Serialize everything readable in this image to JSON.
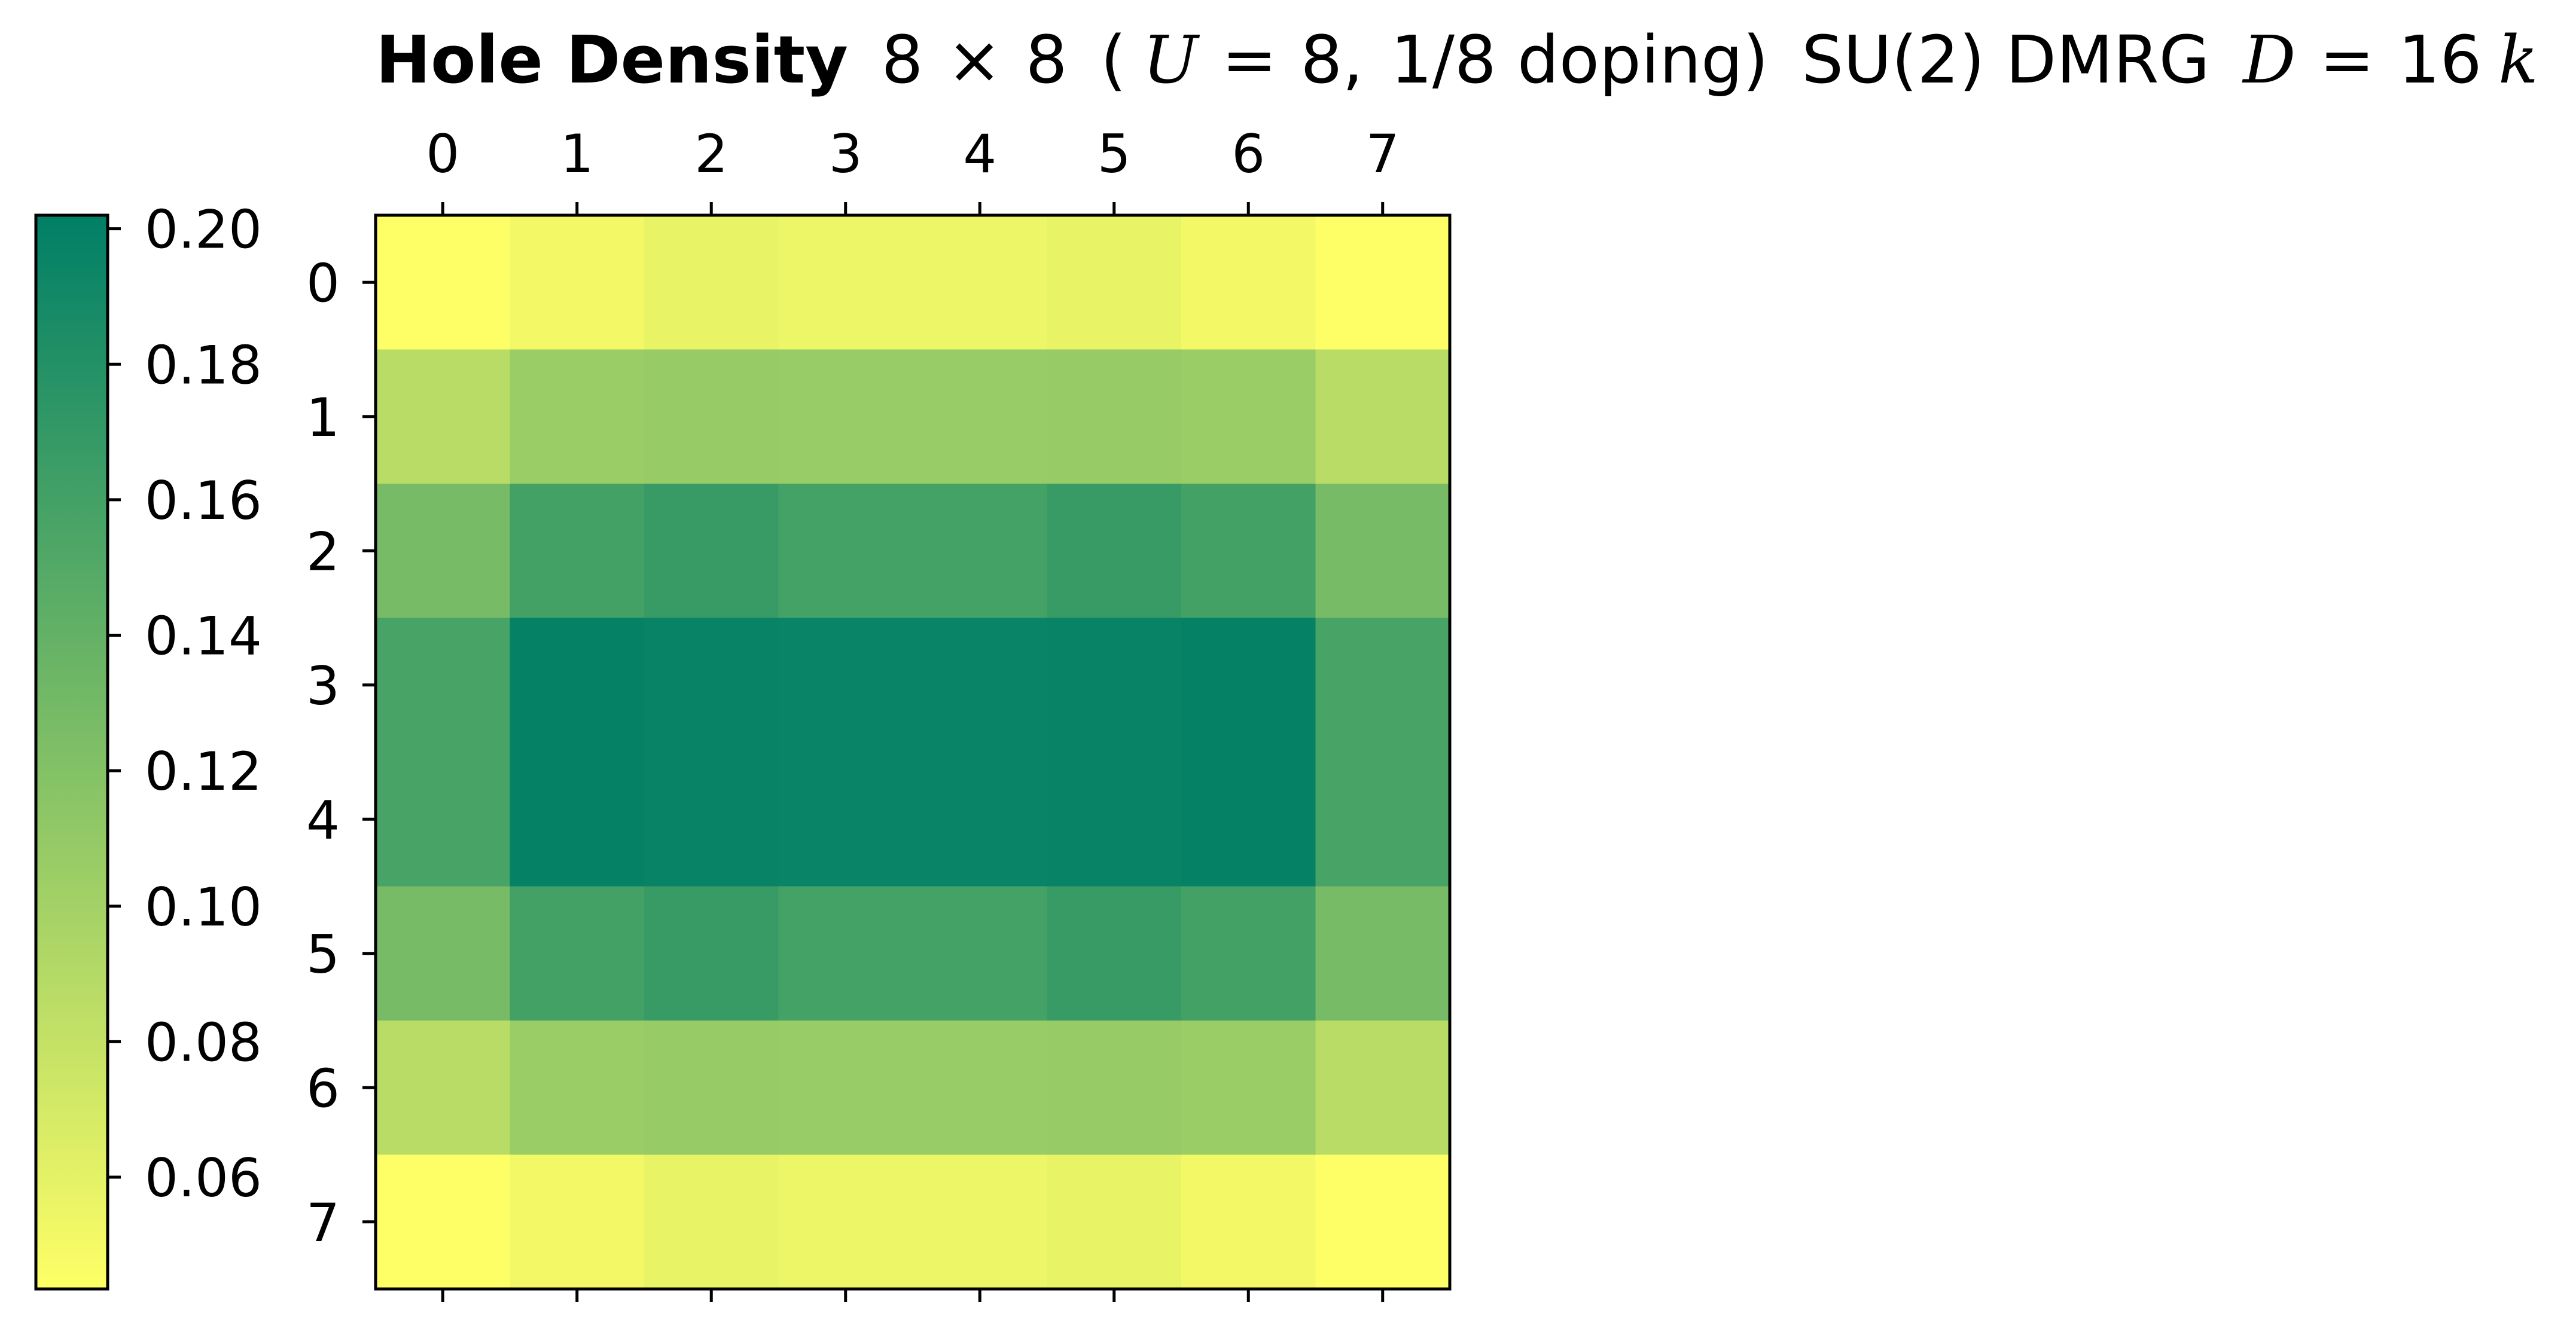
{
  "chart_data": {
    "type": "heatmap",
    "title": {
      "bold": "Hole Density",
      "lattice_n1": "8",
      "times": "×",
      "lattice_n2": "8",
      "paren_open": "(",
      "u_symbol": "U",
      "u_equals": "=",
      "u_value": "8,",
      "doping": "1/8 doping)",
      "method": "SU(2) DMRG",
      "d_symbol": "D",
      "d_equals": "=",
      "d_value": "16",
      "d_suffix": "k"
    },
    "x_ticks": [
      "0",
      "1",
      "2",
      "3",
      "4",
      "5",
      "6",
      "7"
    ],
    "y_ticks": [
      "0",
      "1",
      "2",
      "3",
      "4",
      "5",
      "6",
      "7"
    ],
    "x_tick_position": "top",
    "colorbar": {
      "position": "left",
      "ticks": [
        "0.06",
        "0.08",
        "0.10",
        "0.12",
        "0.14",
        "0.16",
        "0.18",
        "0.20"
      ],
      "tick_values": [
        0.06,
        0.08,
        0.1,
        0.12,
        0.14,
        0.16,
        0.18,
        0.2
      ],
      "vmin": 0.0435,
      "vmax": 0.202,
      "colors": [
        "#ffff66",
        "#7fbf66",
        "#007f66"
      ]
    },
    "values": [
      [
        0.044,
        0.051,
        0.058,
        0.055,
        0.055,
        0.058,
        0.051,
        0.044
      ],
      [
        0.087,
        0.106,
        0.108,
        0.107,
        0.107,
        0.108,
        0.106,
        0.087
      ],
      [
        0.128,
        0.16,
        0.167,
        0.159,
        0.159,
        0.167,
        0.16,
        0.128
      ],
      [
        0.157,
        0.199,
        0.197,
        0.196,
        0.196,
        0.197,
        0.199,
        0.157
      ],
      [
        0.157,
        0.199,
        0.197,
        0.196,
        0.196,
        0.197,
        0.199,
        0.157
      ],
      [
        0.128,
        0.16,
        0.167,
        0.159,
        0.159,
        0.167,
        0.16,
        0.128
      ],
      [
        0.087,
        0.106,
        0.108,
        0.107,
        0.107,
        0.108,
        0.106,
        0.087
      ],
      [
        0.044,
        0.051,
        0.058,
        0.055,
        0.055,
        0.058,
        0.051,
        0.044
      ]
    ],
    "grid": false,
    "legend": "none"
  }
}
